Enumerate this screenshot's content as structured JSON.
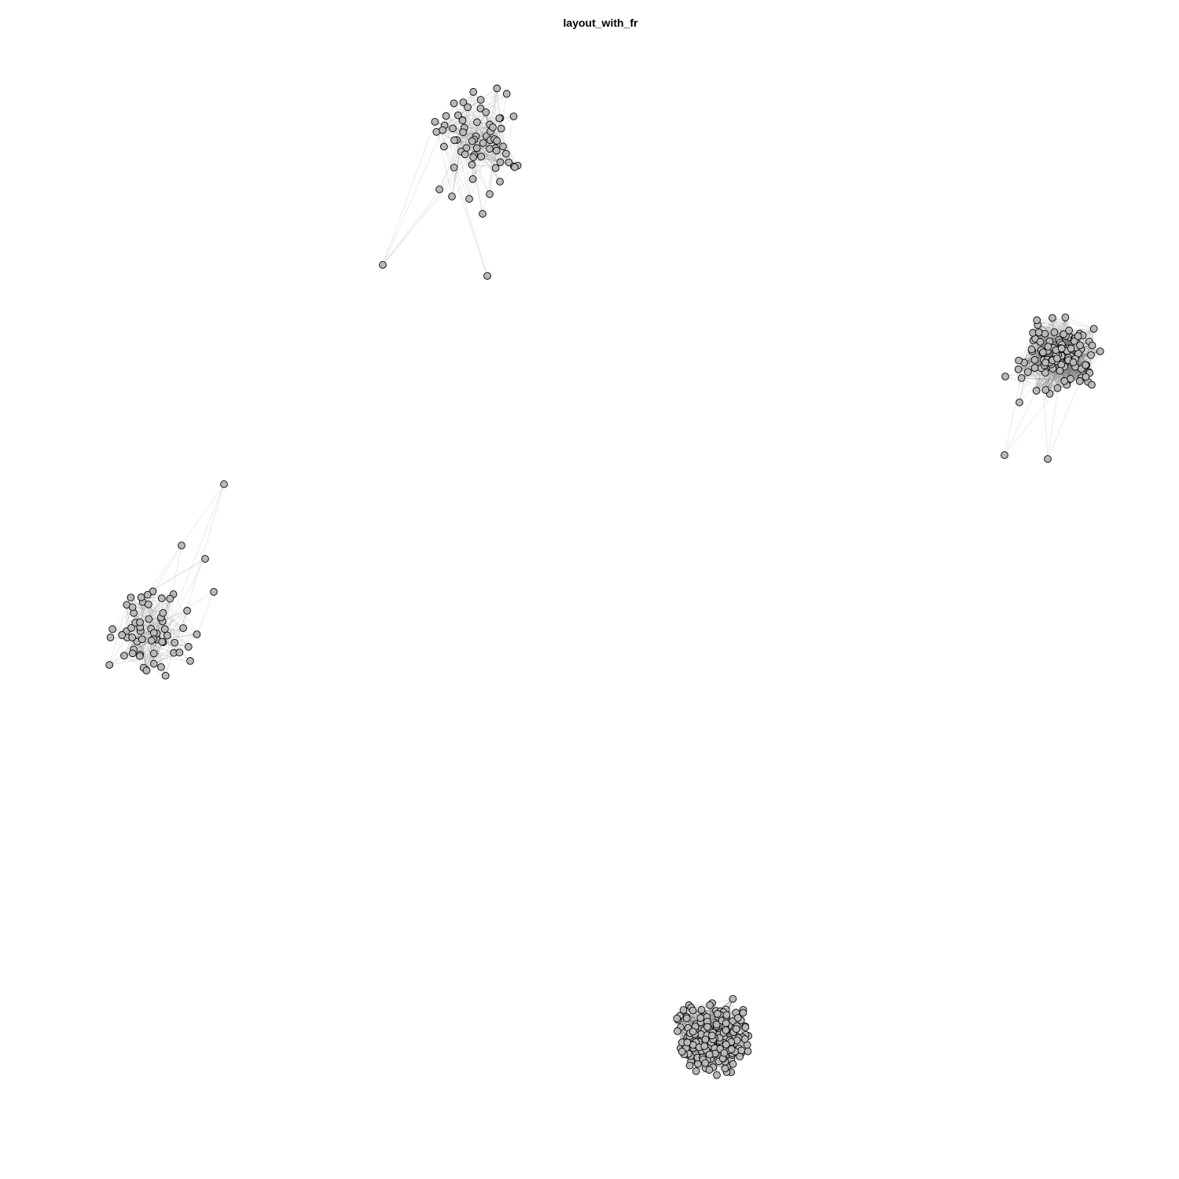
{
  "title": "layout_with_fr",
  "colors": {
    "background": "#ffffff",
    "node_fill": "#b9b9b9",
    "node_stroke": "#000000",
    "edge": "#6e6e6e"
  },
  "graph": {
    "layout_algorithm": "layout_with_fr",
    "component_count": 4,
    "node_shape": "circle",
    "edge_style": "thin-gray-lines"
  }
}
